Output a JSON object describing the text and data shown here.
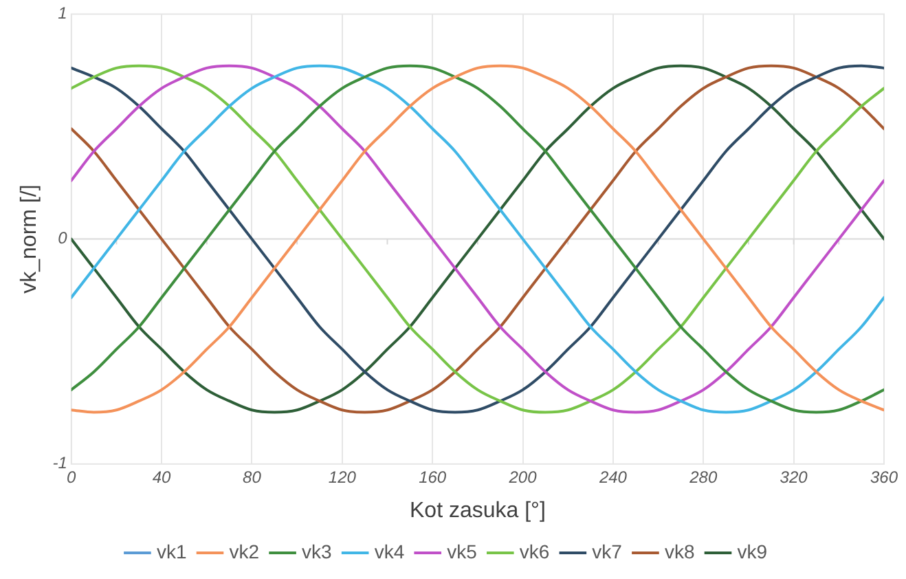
{
  "chart_data": {
    "type": "line",
    "xlabel": "Kot zasuka [°]",
    "ylabel": "vk_norm [/]",
    "x": [
      0,
      10,
      20,
      30,
      40,
      50,
      60,
      70,
      80,
      90,
      100,
      110,
      120,
      130,
      140,
      150,
      160,
      170,
      180,
      190,
      200,
      210,
      220,
      230,
      240,
      250,
      260,
      270,
      280,
      290,
      300,
      310,
      320,
      330,
      340,
      350,
      360
    ],
    "xlim": [
      0,
      360
    ],
    "xticks": [
      0,
      40,
      80,
      120,
      160,
      200,
      240,
      280,
      320,
      360
    ],
    "ylim": [
      -1,
      1
    ],
    "yticks": [
      -1,
      0,
      1
    ],
    "grid": "x",
    "legend": "bottom",
    "marker": "none",
    "line_style": "solid",
    "series": [
      {
        "name": "vk1",
        "color": "#5b9bd5",
        "values": [
          null,
          null,
          null,
          null,
          null,
          null,
          null,
          null,
          null,
          null,
          null,
          null,
          null,
          null,
          null,
          null,
          null,
          null,
          null,
          null,
          null,
          null,
          null,
          null,
          null,
          null,
          null,
          null,
          null,
          null,
          null,
          null,
          null,
          null,
          null,
          null,
          null
        ]
      },
      {
        "name": "vk2",
        "color": "#f4925a",
        "values": [
          -0.76,
          -0.77,
          -0.76,
          -0.72,
          -0.67,
          -0.59,
          -0.49,
          -0.39,
          -0.26,
          -0.13,
          0,
          0.13,
          0.26,
          0.39,
          0.49,
          0.59,
          0.67,
          0.72,
          0.76,
          0.77,
          0.76,
          0.72,
          0.67,
          0.59,
          0.49,
          0.39,
          0.26,
          0.13,
          0,
          -0.13,
          -0.26,
          -0.39,
          -0.49,
          -0.59,
          -0.67,
          -0.72,
          -0.76
        ]
      },
      {
        "name": "vk3",
        "color": "#3f8f3f",
        "values": [
          -0.67,
          -0.59,
          -0.49,
          -0.39,
          -0.26,
          -0.13,
          0,
          0.13,
          0.26,
          0.39,
          0.49,
          0.59,
          0.67,
          0.72,
          0.76,
          0.77,
          0.76,
          0.72,
          0.67,
          0.59,
          0.49,
          0.39,
          0.26,
          0.13,
          0,
          -0.13,
          -0.26,
          -0.39,
          -0.49,
          -0.59,
          -0.67,
          -0.72,
          -0.76,
          -0.77,
          -0.76,
          -0.72,
          -0.67
        ]
      },
      {
        "name": "vk4",
        "color": "#41b6e6",
        "values": [
          -0.26,
          -0.13,
          0,
          0.13,
          0.26,
          0.39,
          0.49,
          0.59,
          0.67,
          0.72,
          0.76,
          0.77,
          0.76,
          0.72,
          0.67,
          0.59,
          0.49,
          0.39,
          0.26,
          0.13,
          0,
          -0.13,
          -0.26,
          -0.39,
          -0.49,
          -0.59,
          -0.67,
          -0.72,
          -0.76,
          -0.77,
          -0.76,
          -0.72,
          -0.67,
          -0.59,
          -0.49,
          -0.39,
          -0.26
        ]
      },
      {
        "name": "vk5",
        "color": "#c050c8",
        "values": [
          0.26,
          0.39,
          0.49,
          0.59,
          0.67,
          0.72,
          0.76,
          0.77,
          0.76,
          0.72,
          0.67,
          0.59,
          0.49,
          0.39,
          0.26,
          0.13,
          0,
          -0.13,
          -0.26,
          -0.39,
          -0.49,
          -0.59,
          -0.67,
          -0.72,
          -0.76,
          -0.77,
          -0.76,
          -0.72,
          -0.67,
          -0.59,
          -0.49,
          -0.39,
          -0.26,
          -0.13,
          0,
          0.13,
          0.26
        ]
      },
      {
        "name": "vk6",
        "color": "#78c448",
        "values": [
          0.67,
          0.72,
          0.76,
          0.77,
          0.76,
          0.72,
          0.67,
          0.59,
          0.49,
          0.39,
          0.26,
          0.13,
          0,
          -0.13,
          -0.26,
          -0.39,
          -0.49,
          -0.59,
          -0.67,
          -0.72,
          -0.76,
          -0.77,
          -0.76,
          -0.72,
          -0.67,
          -0.59,
          -0.49,
          -0.39,
          -0.26,
          -0.13,
          0,
          0.13,
          0.26,
          0.39,
          0.49,
          0.59,
          0.67
        ]
      },
      {
        "name": "vk7",
        "color": "#2f4c66",
        "values": [
          0.76,
          0.72,
          0.67,
          0.59,
          0.49,
          0.39,
          0.26,
          0.13,
          0,
          -0.13,
          -0.26,
          -0.39,
          -0.49,
          -0.59,
          -0.67,
          -0.72,
          -0.76,
          -0.77,
          -0.76,
          -0.72,
          -0.67,
          -0.59,
          -0.49,
          -0.39,
          -0.26,
          -0.13,
          0,
          0.13,
          0.26,
          0.39,
          0.49,
          0.59,
          0.67,
          0.72,
          0.76,
          0.77,
          0.76
        ]
      },
      {
        "name": "vk8",
        "color": "#a85a32",
        "values": [
          0.49,
          0.39,
          0.26,
          0.13,
          0,
          -0.13,
          -0.26,
          -0.39,
          -0.49,
          -0.59,
          -0.67,
          -0.72,
          -0.76,
          -0.77,
          -0.76,
          -0.72,
          -0.67,
          -0.59,
          -0.49,
          -0.39,
          -0.26,
          -0.13,
          0,
          0.13,
          0.26,
          0.39,
          0.49,
          0.59,
          0.67,
          0.72,
          0.76,
          0.77,
          0.76,
          0.72,
          0.67,
          0.59,
          0.49
        ]
      },
      {
        "name": "vk9",
        "color": "#2e5f38",
        "values": [
          0,
          -0.13,
          -0.26,
          -0.39,
          -0.49,
          -0.59,
          -0.67,
          -0.72,
          -0.76,
          -0.77,
          -0.76,
          -0.72,
          -0.67,
          -0.59,
          -0.49,
          -0.39,
          -0.26,
          -0.13,
          0,
          0.13,
          0.26,
          0.39,
          0.49,
          0.59,
          0.67,
          0.72,
          0.76,
          0.77,
          0.76,
          0.72,
          0.67,
          0.59,
          0.49,
          0.39,
          0.26,
          0.13,
          0
        ]
      }
    ]
  }
}
